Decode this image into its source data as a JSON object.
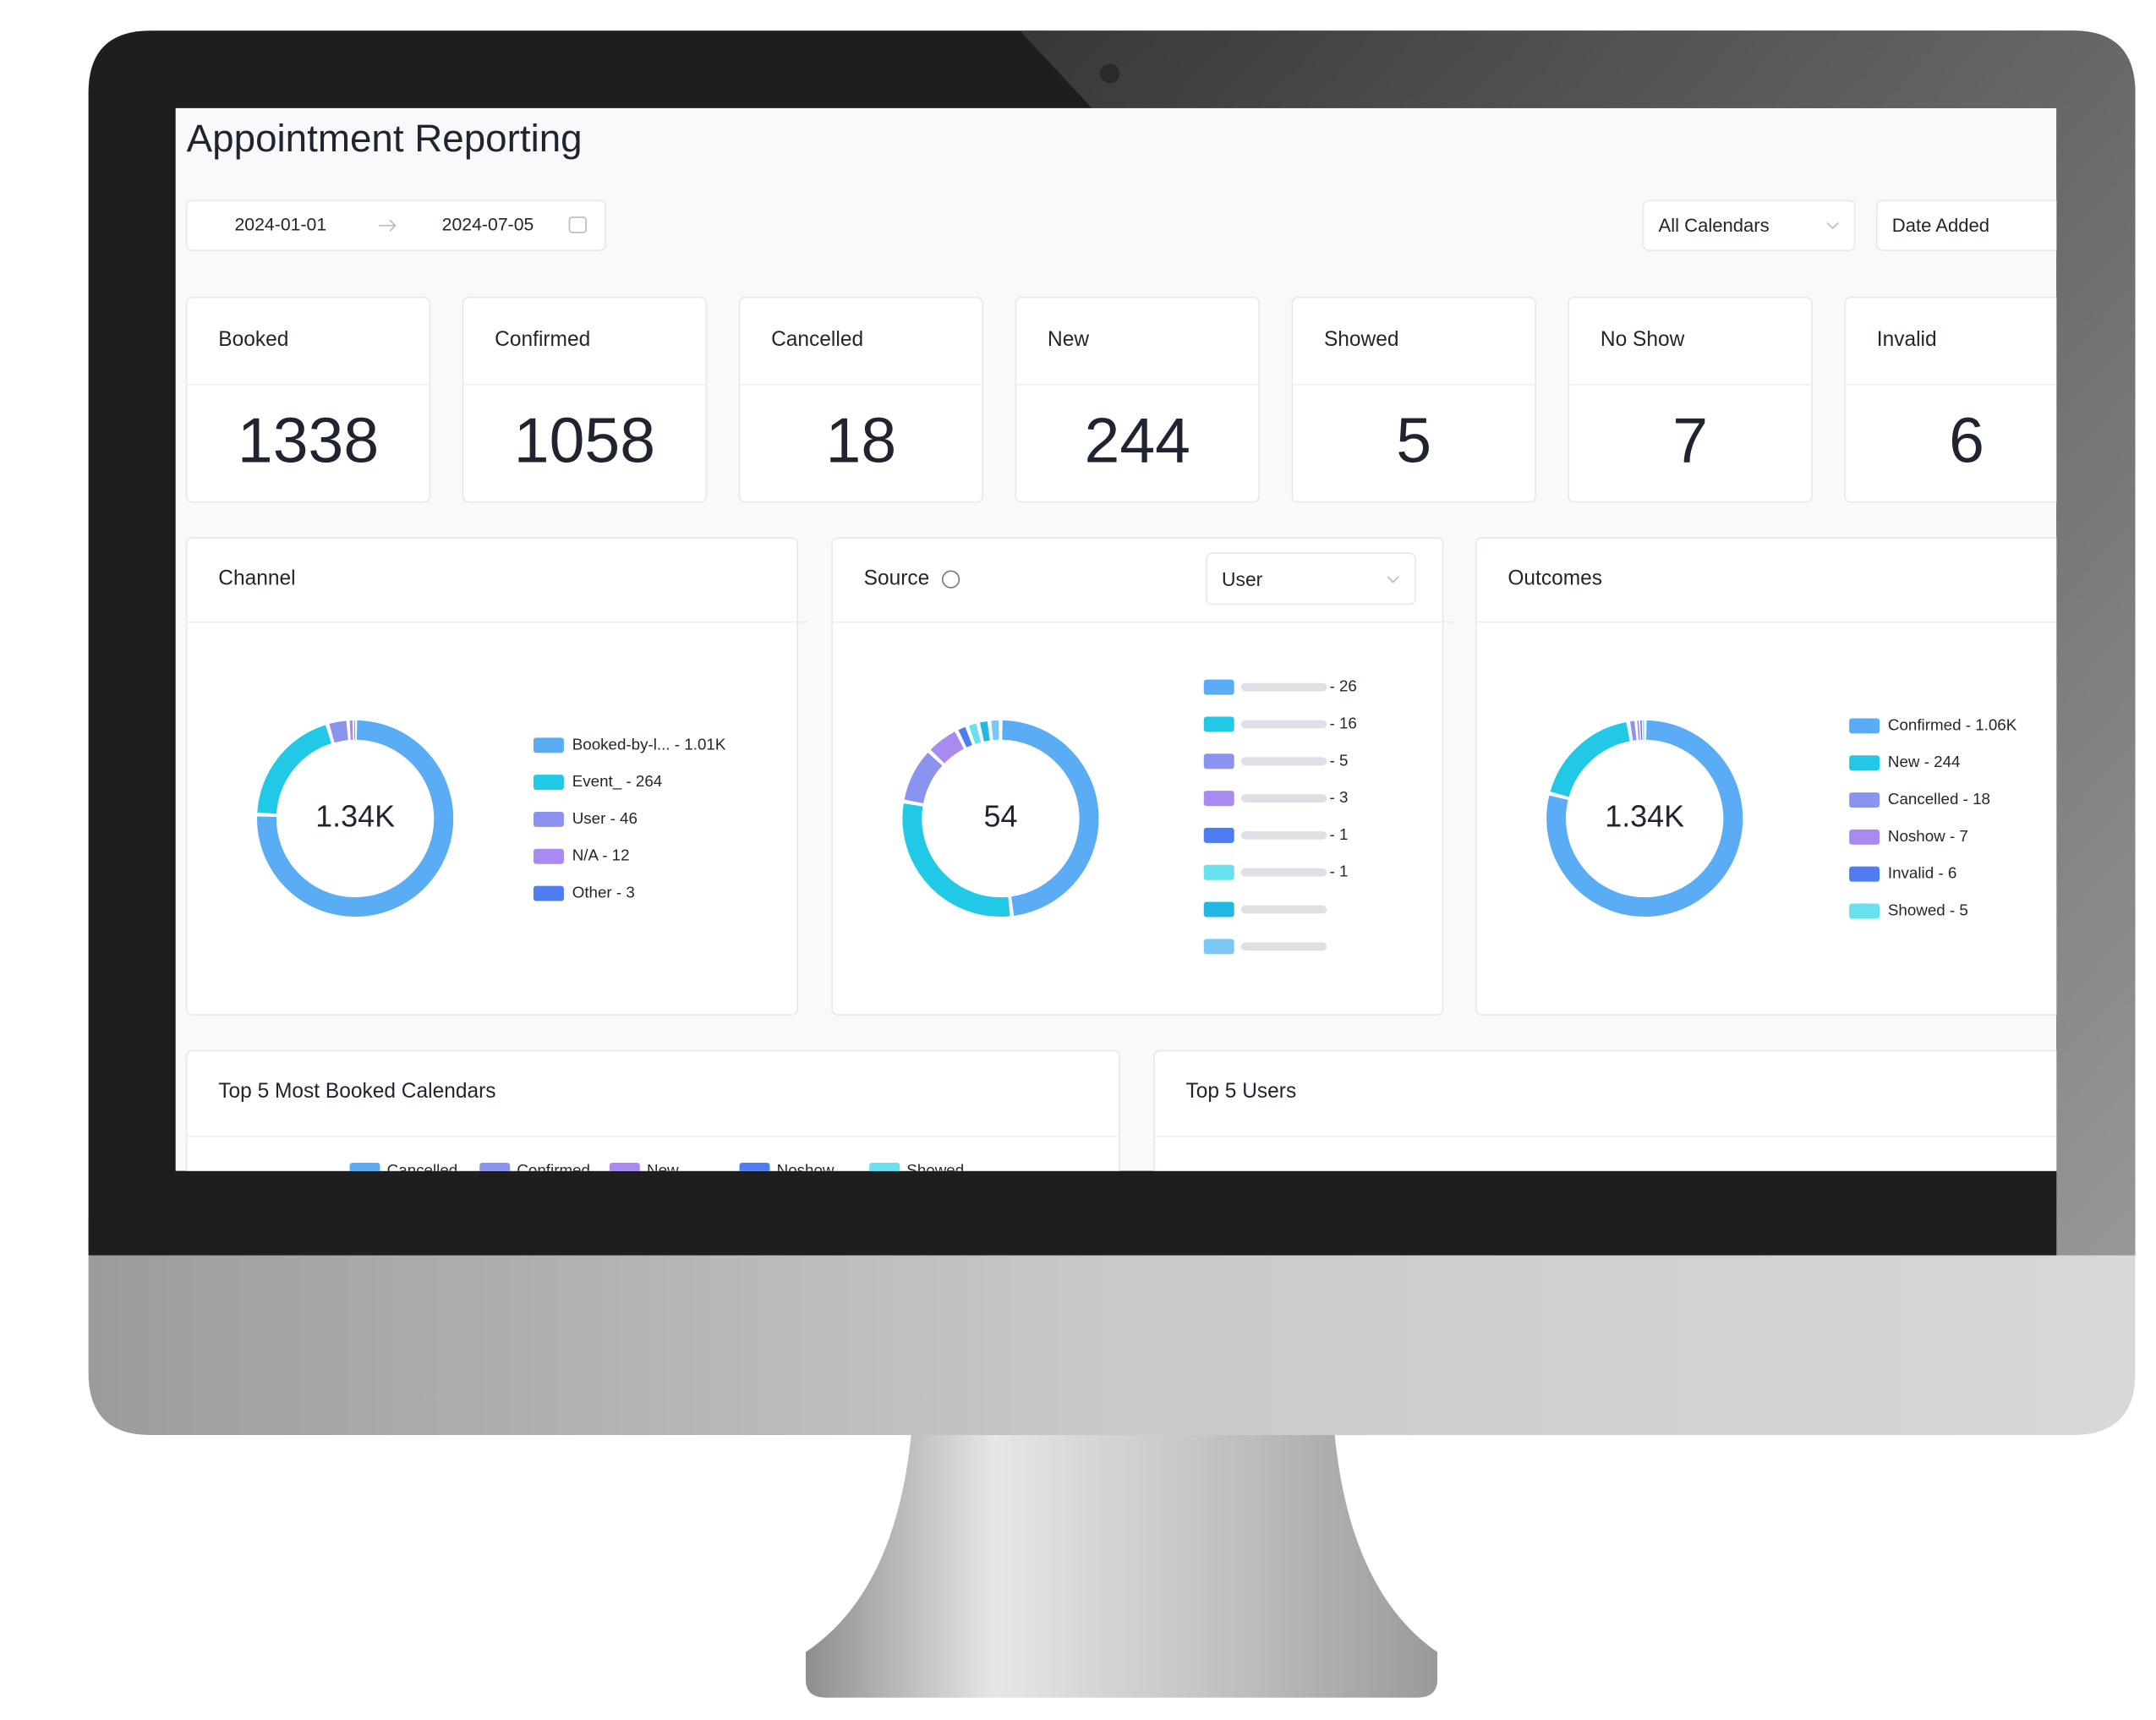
{
  "header": {
    "title": "Appointment Reporting"
  },
  "filters": {
    "date_start": "2024-01-01",
    "date_end": "2024-07-05",
    "calendar": "All Calendars",
    "date_type": "Date Added"
  },
  "stats": [
    {
      "label": "Booked",
      "value": 1338
    },
    {
      "label": "Confirmed",
      "value": 1058
    },
    {
      "label": "Cancelled",
      "value": 18
    },
    {
      "label": "New",
      "value": 244
    },
    {
      "label": "Showed",
      "value": 5
    },
    {
      "label": "No Show",
      "value": 7
    },
    {
      "label": "Invalid",
      "value": 6
    }
  ],
  "panels": [
    {
      "title": "Channel",
      "type": "donut",
      "center_label": "1.34K",
      "segments": [
        {
          "label": "Booked-by-l... - 1.01K",
          "value": 1010,
          "color": "#5aacf5"
        },
        {
          "label": "Event_ - 264",
          "value": 264,
          "color": "#22c9e6"
        },
        {
          "label": "User - 46",
          "value": 46,
          "color": "#8b93f0"
        },
        {
          "label": "N/A - 12",
          "value": 12,
          "color": "#a88af0"
        },
        {
          "label": "Other - 3",
          "value": 3,
          "color": "#4f7cf0"
        }
      ]
    },
    {
      "title": "Source",
      "type": "donut",
      "dropdown": "User",
      "center_label": "54",
      "segments": [
        {
          "label": "- 26",
          "value": 26,
          "color": "#5aacf5"
        },
        {
          "label": "- 16",
          "value": 16,
          "color": "#22c9e6"
        },
        {
          "label": "- 5",
          "value": 5,
          "color": "#8b93f0"
        },
        {
          "label": "- 3",
          "value": 3,
          "color": "#a88af0"
        },
        {
          "label": "- 1",
          "value": 1,
          "color": "#4f7cf0"
        },
        {
          "label": "- 1",
          "value": 1,
          "color": "#67e0f0"
        },
        {
          "label": null,
          "value": 1,
          "color": "#22b8e6"
        },
        {
          "label": null,
          "value": 1,
          "color": "#7cc8f5"
        }
      ]
    },
    {
      "title": "Outcomes",
      "type": "donut",
      "center_label": "1.34K",
      "segments": [
        {
          "label": "Confirmed - 1.06K",
          "value": 1060,
          "color": "#5aacf5"
        },
        {
          "label": "New - 244",
          "value": 244,
          "color": "#22c9e6"
        },
        {
          "label": "Cancelled - 18",
          "value": 18,
          "color": "#8b93f0"
        },
        {
          "label": "Noshow - 7",
          "value": 7,
          "color": "#a88af0"
        },
        {
          "label": "Invalid - 6",
          "value": 6,
          "color": "#4f7cf0"
        },
        {
          "label": "Showed - 5",
          "value": 5,
          "color": "#67e0f0"
        }
      ]
    }
  ],
  "bottom": [
    {
      "title": "Top 5 Most Booked Calendars",
      "legend": [
        {
          "label": "Cancelled",
          "color": "#5aacf5"
        },
        {
          "label": "Confirmed",
          "color": "#8b93f0"
        },
        {
          "label": "New",
          "color": "#a88af0"
        },
        {
          "label": "Noshow",
          "color": "#4f7cf0"
        },
        {
          "label": "Showed",
          "color": "#67e0f0"
        }
      ]
    },
    {
      "title": "Top 5 Users"
    }
  ]
}
